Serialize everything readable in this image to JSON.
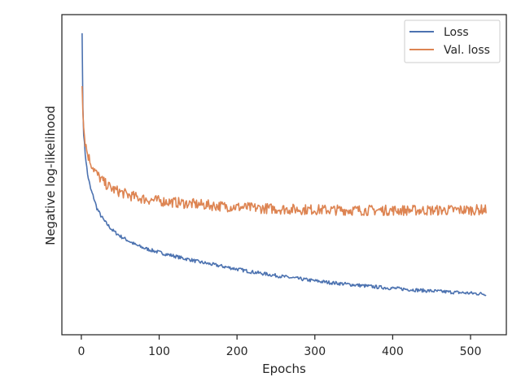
{
  "chart_data": {
    "type": "line",
    "xlabel": "Epochs",
    "ylabel": "Negative log-likelihood",
    "xlim": [
      -25,
      546
    ],
    "ylim": [
      0,
      1
    ],
    "x_ticks": [
      0,
      100,
      200,
      300,
      400,
      500
    ],
    "y_ticks_shown": false,
    "grid": false,
    "legend_position": "top-right",
    "series": [
      {
        "name": "Loss",
        "color": "#4c72b0",
        "x": [
          1,
          2,
          3,
          5,
          8,
          12,
          16,
          20,
          25,
          30,
          35,
          40,
          50,
          60,
          70,
          80,
          90,
          100,
          110,
          120,
          130,
          140,
          150,
          160,
          170,
          180,
          190,
          200,
          220,
          240,
          260,
          280,
          300,
          320,
          340,
          360,
          380,
          400,
          420,
          440,
          460,
          480,
          500,
          520
        ],
        "y": [
          0.97,
          0.72,
          0.63,
          0.56,
          0.49,
          0.44,
          0.41,
          0.375,
          0.35,
          0.33,
          0.315,
          0.3,
          0.28,
          0.265,
          0.25,
          0.24,
          0.232,
          0.225,
          0.218,
          0.212,
          0.205,
          0.2,
          0.193,
          0.188,
          0.183,
          0.178,
          0.173,
          0.168,
          0.158,
          0.15,
          0.142,
          0.135,
          0.128,
          0.122,
          0.117,
          0.112,
          0.107,
          0.103,
          0.099,
          0.095,
          0.092,
          0.089,
          0.086,
          0.083
        ]
      },
      {
        "name": "Val. loss",
        "color": "#dd8452",
        "x": [
          1,
          2,
          3,
          5,
          8,
          12,
          16,
          20,
          25,
          30,
          35,
          40,
          50,
          60,
          70,
          80,
          90,
          100,
          120,
          140,
          160,
          180,
          200,
          220,
          240,
          260,
          280,
          300,
          320,
          340,
          360,
          380,
          400,
          420,
          440,
          460,
          480,
          500,
          520
        ],
        "y": [
          0.79,
          0.7,
          0.65,
          0.6,
          0.56,
          0.53,
          0.51,
          0.49,
          0.475,
          0.46,
          0.45,
          0.44,
          0.43,
          0.42,
          0.413,
          0.407,
          0.403,
          0.4,
          0.395,
          0.39,
          0.386,
          0.382,
          0.379,
          0.376,
          0.374,
          0.372,
          0.371,
          0.37,
          0.369,
          0.369,
          0.368,
          0.368,
          0.368,
          0.368,
          0.368,
          0.368,
          0.369,
          0.369,
          0.37
        ]
      }
    ]
  }
}
